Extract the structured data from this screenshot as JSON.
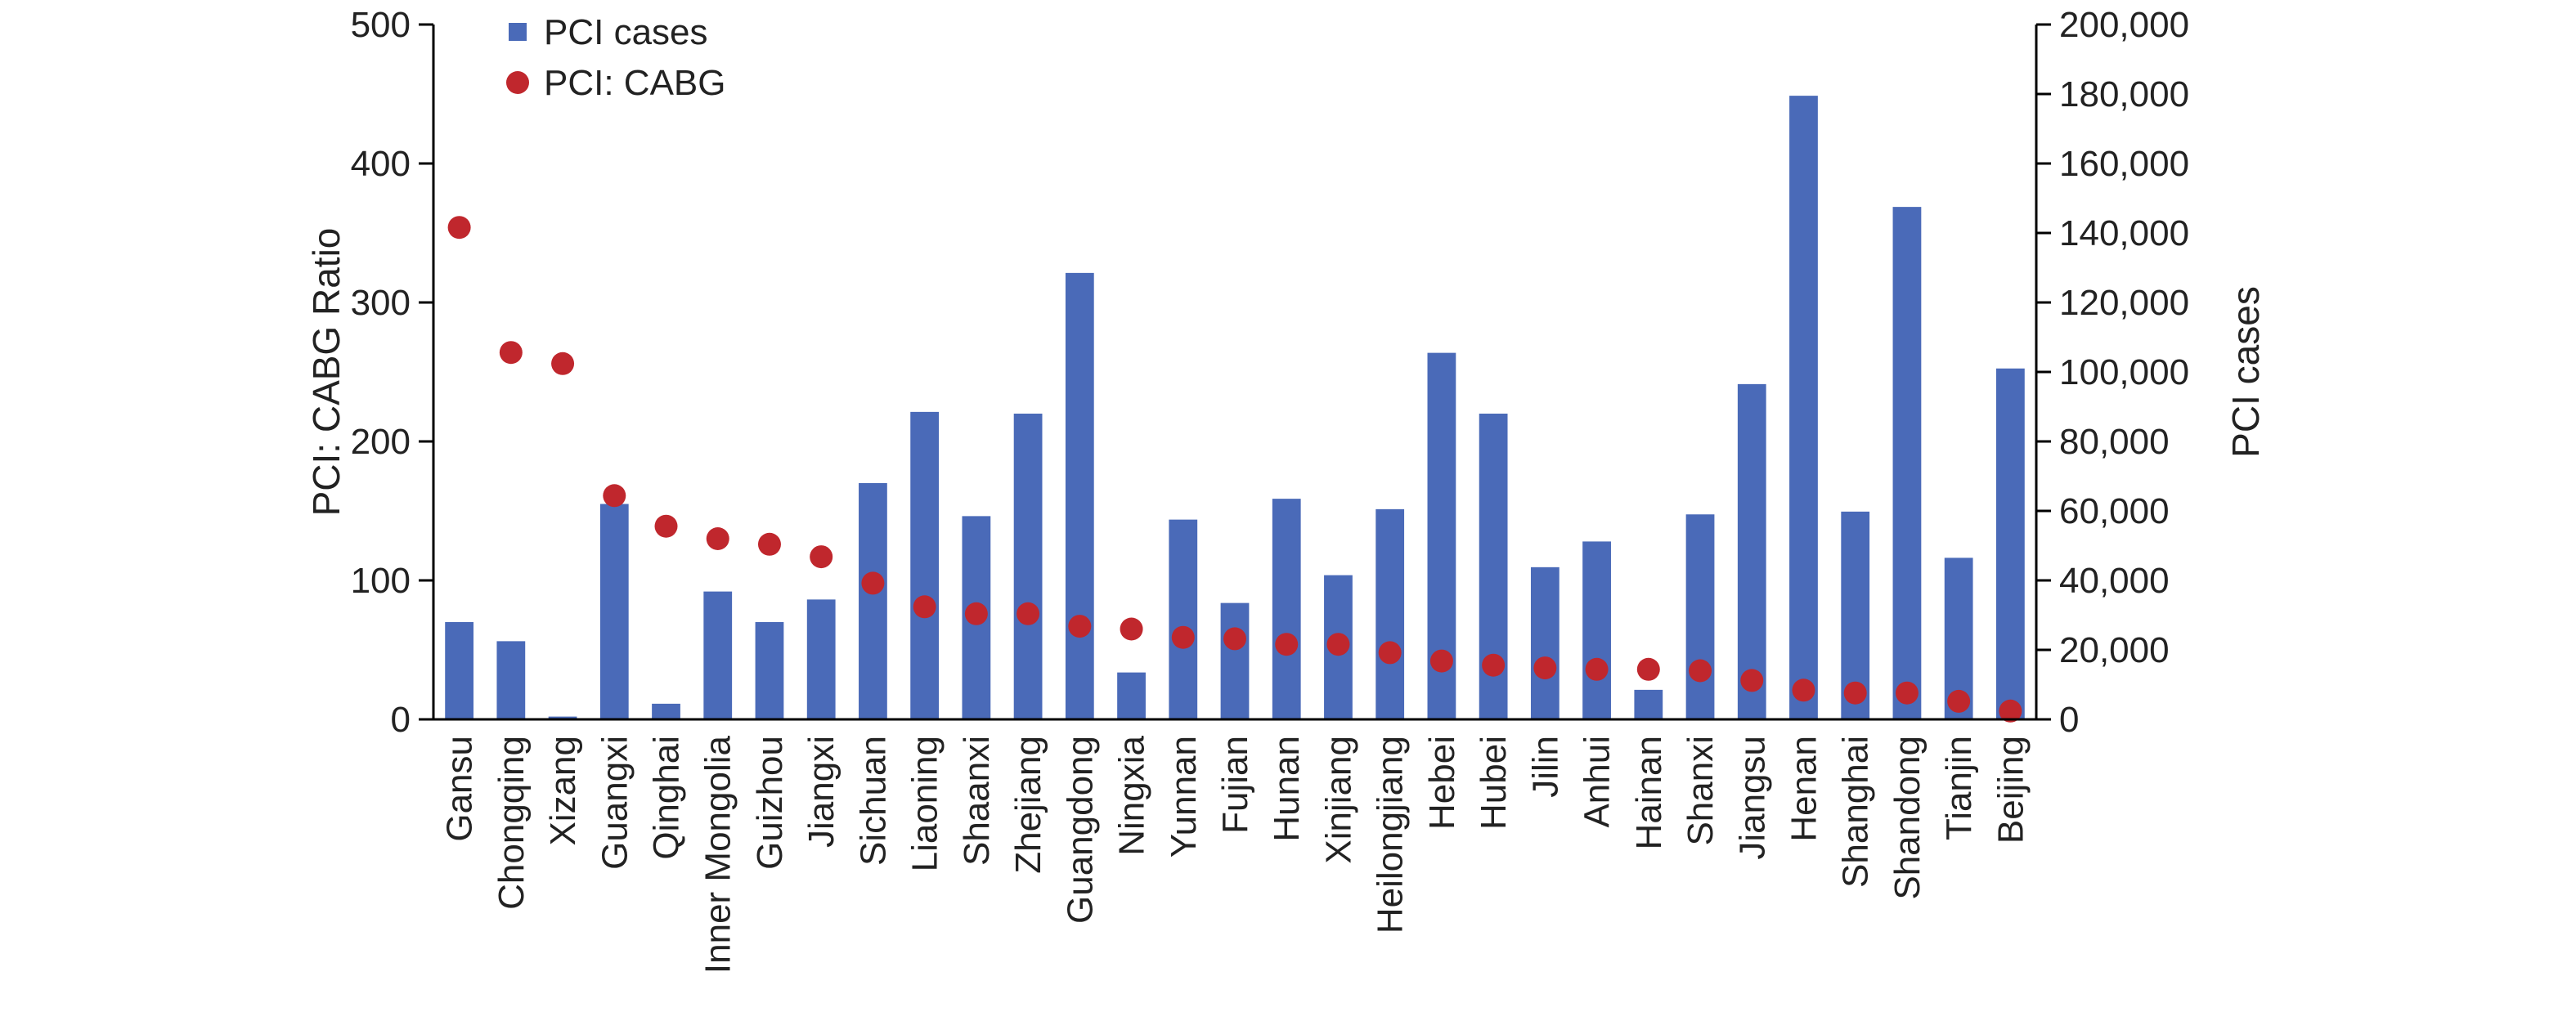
{
  "chart_data": {
    "type": "bar",
    "categories": [
      "Gansu",
      "Chongqing",
      "Xizang",
      "Guangxi",
      "Qinghai",
      "Inner Mongolia",
      "Guizhou",
      "Jiangxi",
      "Sichuan",
      "Liaoning",
      "Shaanxi",
      "Zhejiang",
      "Guangdong",
      "Ningxia",
      "Yunnan",
      "Fujian",
      "Hunan",
      "Xinjiang",
      "Heilongjiang",
      "Hebei",
      "Hubei",
      "Jilin",
      "Anhui",
      "Hainan",
      "Shanxi",
      "Jiangsu",
      "Henan",
      "Shanghai",
      "Shandong",
      "Tianjin",
      "Beijing"
    ],
    "series": [
      {
        "name": "PCI cases",
        "type": "bar",
        "axis": "right",
        "color": "#4a6ab8",
        "values": [
          28000,
          22500,
          800,
          62000,
          4500,
          36800,
          28000,
          34500,
          68000,
          88500,
          58500,
          88000,
          128500,
          13500,
          57500,
          33500,
          63500,
          41500,
          60500,
          105500,
          88000,
          43800,
          51200,
          8500,
          59000,
          96500,
          179500,
          59800,
          147500,
          46500,
          101000
        ]
      },
      {
        "name": "PCI: CABG",
        "type": "scatter",
        "axis": "left",
        "color": "#c0272d",
        "values": [
          354,
          264,
          256,
          161,
          139,
          130,
          126,
          117,
          98,
          81,
          76,
          76,
          67,
          65,
          59,
          58,
          54,
          54,
          48,
          42,
          39,
          37,
          36,
          36,
          35,
          28,
          21,
          19,
          19,
          13,
          6
        ]
      }
    ],
    "left_axis": {
      "label": "PCI: CABG Ratio",
      "range": [
        0,
        500
      ],
      "ticks": [
        0,
        100,
        200,
        300,
        400,
        500
      ]
    },
    "right_axis": {
      "label": "PCI cases",
      "range": [
        0,
        200000
      ],
      "ticks": [
        "0",
        "20,000",
        "40,000",
        "60,000",
        "80,000",
        "100,000",
        "120,000",
        "140,000",
        "160,000",
        "180,000",
        "200,000"
      ]
    },
    "grid": false,
    "legend_position": "top-left"
  }
}
